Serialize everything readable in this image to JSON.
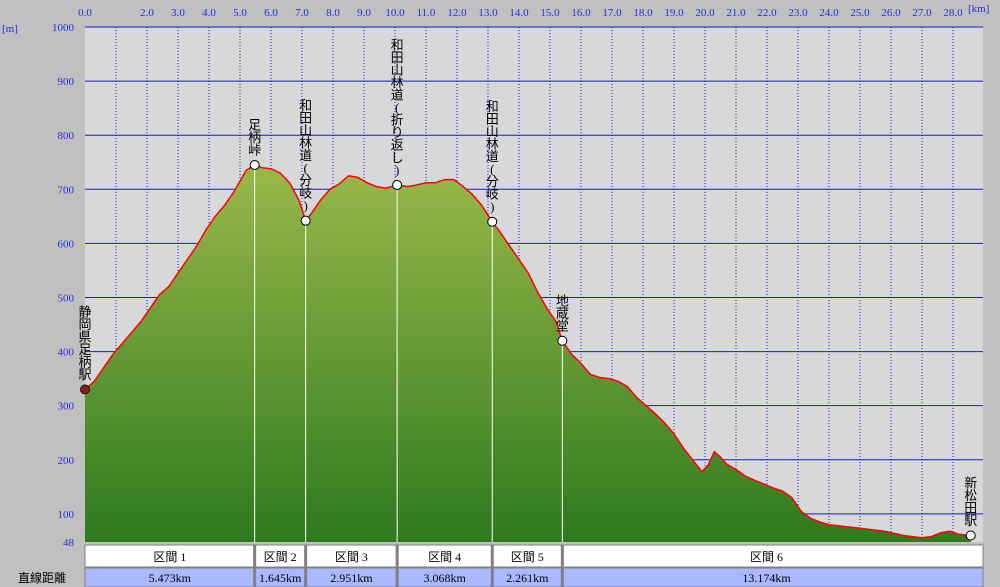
{
  "chart_data": {
    "type": "area",
    "x_unit": "[km]",
    "y_unit": "[m]",
    "xlim": [
      0,
      28.3
    ],
    "ylim": [
      48,
      1000
    ],
    "x_ticks": [
      "0.0",
      "2.0",
      "3.0",
      "4.0",
      "5.0",
      "6.0",
      "7.0",
      "8.0",
      "9.0",
      "10.0",
      "11.0",
      "12.0",
      "13.0",
      "14.0",
      "15.0",
      "16.0",
      "17.0",
      "18.0",
      "19.0",
      "20.0",
      "21.0",
      "22.0",
      "23.0",
      "24.0",
      "25.0",
      "26.0",
      "27.0",
      "28.0"
    ],
    "y_ticks": [
      {
        "value": 1000,
        "label": "1000"
      },
      {
        "value": 900,
        "label": "900"
      },
      {
        "value": 800,
        "label": "800"
      },
      {
        "value": 700,
        "label": "700"
      },
      {
        "value": 600,
        "label": "600"
      },
      {
        "value": 500,
        "label": "500"
      },
      {
        "value": 400,
        "label": "400"
      },
      {
        "value": 300,
        "label": "300"
      },
      {
        "value": 200,
        "label": "200"
      },
      {
        "value": 100,
        "label": "100"
      },
      {
        "value": 48,
        "label": "48"
      }
    ],
    "grid": true,
    "profile": [
      [
        0.0,
        330
      ],
      [
        0.3,
        345
      ],
      [
        0.6,
        370
      ],
      [
        0.9,
        395
      ],
      [
        1.2,
        415
      ],
      [
        1.5,
        435
      ],
      [
        1.8,
        455
      ],
      [
        2.1,
        480
      ],
      [
        2.4,
        505
      ],
      [
        2.7,
        520
      ],
      [
        3.0,
        545
      ],
      [
        3.3,
        570
      ],
      [
        3.6,
        595
      ],
      [
        3.9,
        625
      ],
      [
        4.2,
        650
      ],
      [
        4.5,
        670
      ],
      [
        4.8,
        695
      ],
      [
        5.0,
        715
      ],
      [
        5.2,
        735
      ],
      [
        5.473,
        745
      ],
      [
        5.7,
        740
      ],
      [
        6.0,
        738
      ],
      [
        6.3,
        730
      ],
      [
        6.6,
        712
      ],
      [
        6.9,
        680
      ],
      [
        7.118,
        642
      ],
      [
        7.3,
        655
      ],
      [
        7.6,
        680
      ],
      [
        7.9,
        700
      ],
      [
        8.2,
        710
      ],
      [
        8.5,
        725
      ],
      [
        8.8,
        722
      ],
      [
        9.1,
        712
      ],
      [
        9.4,
        705
      ],
      [
        9.7,
        702
      ],
      [
        10.069,
        708
      ],
      [
        10.4,
        705
      ],
      [
        10.7,
        708
      ],
      [
        11.0,
        712
      ],
      [
        11.3,
        712
      ],
      [
        11.6,
        718
      ],
      [
        11.9,
        718
      ],
      [
        12.2,
        705
      ],
      [
        12.5,
        690
      ],
      [
        12.8,
        670
      ],
      [
        13.137,
        640
      ],
      [
        13.4,
        620
      ],
      [
        13.7,
        595
      ],
      [
        14.0,
        570
      ],
      [
        14.3,
        545
      ],
      [
        14.6,
        510
      ],
      [
        14.9,
        480
      ],
      [
        15.2,
        455
      ],
      [
        15.398,
        420
      ],
      [
        15.7,
        395
      ],
      [
        16.0,
        378
      ],
      [
        16.3,
        358
      ],
      [
        16.6,
        352
      ],
      [
        16.9,
        350
      ],
      [
        17.2,
        345
      ],
      [
        17.5,
        335
      ],
      [
        17.8,
        315
      ],
      [
        18.1,
        300
      ],
      [
        18.4,
        285
      ],
      [
        18.7,
        268
      ],
      [
        19.0,
        248
      ],
      [
        19.3,
        222
      ],
      [
        19.6,
        200
      ],
      [
        19.9,
        178
      ],
      [
        20.1,
        190
      ],
      [
        20.3,
        215
      ],
      [
        20.5,
        205
      ],
      [
        20.7,
        192
      ],
      [
        21.0,
        182
      ],
      [
        21.3,
        170
      ],
      [
        21.6,
        162
      ],
      [
        21.9,
        155
      ],
      [
        22.2,
        148
      ],
      [
        22.5,
        142
      ],
      [
        22.8,
        130
      ],
      [
        23.1,
        105
      ],
      [
        23.4,
        92
      ],
      [
        23.7,
        85
      ],
      [
        24.0,
        80
      ],
      [
        24.3,
        78
      ],
      [
        24.6,
        76
      ],
      [
        24.9,
        74
      ],
      [
        25.2,
        72
      ],
      [
        25.5,
        70
      ],
      [
        25.8,
        68
      ],
      [
        26.1,
        64
      ],
      [
        26.4,
        60
      ],
      [
        26.7,
        58
      ],
      [
        27.0,
        56
      ],
      [
        27.3,
        58
      ],
      [
        27.6,
        65
      ],
      [
        27.9,
        68
      ],
      [
        28.2,
        62
      ],
      [
        28.572,
        60
      ]
    ],
    "waypoints": [
      {
        "name": "静岡県足柄駅",
        "km": 0.0,
        "elev": 330,
        "marker": "start"
      },
      {
        "name": "足柄峠",
        "km": 5.473,
        "elev": 745,
        "marker": "circle"
      },
      {
        "name": "和田山林道(分岐)",
        "km": 7.118,
        "elev": 642,
        "marker": "circle"
      },
      {
        "name": "和田山林道(折り返し)",
        "km": 10.069,
        "elev": 708,
        "marker": "circle"
      },
      {
        "name": "和田山林道(分岐)",
        "km": 13.137,
        "elev": 640,
        "marker": "circle"
      },
      {
        "name": "地蔵堂",
        "km": 15.398,
        "elev": 420,
        "marker": "circle"
      },
      {
        "name": "新松田駅",
        "km": 28.572,
        "elev": 60,
        "marker": "circle"
      }
    ],
    "sections": [
      {
        "label": "区間 1",
        "distance": "5.473km",
        "start_km": 0.0,
        "end_km": 5.473
      },
      {
        "label": "区間 2",
        "distance": "1.645km",
        "start_km": 5.473,
        "end_km": 7.118
      },
      {
        "label": "区間 3",
        "distance": "2.951km",
        "start_km": 7.118,
        "end_km": 10.069
      },
      {
        "label": "区間 4",
        "distance": "3.068km",
        "start_km": 10.069,
        "end_km": 13.137
      },
      {
        "label": "区間 5",
        "distance": "2.261km",
        "start_km": 13.137,
        "end_km": 15.398
      },
      {
        "label": "区間 6",
        "distance": "13.174km",
        "start_km": 15.398,
        "end_km": 28.572
      }
    ],
    "table_row_label": "直線距離",
    "colors": {
      "background": "#c0c0c0",
      "plot": "#d8d8d8",
      "grid_h": "#1a1ac8",
      "grid_v": "#1a1ac8",
      "profile_line": "#ff0000",
      "fill_top": "#9ab84a",
      "fill_bottom": "#2e7a1e",
      "tick_text": "#2b2bd8",
      "section_row": "#ffffff",
      "distance_row": "#a9b8ff"
    }
  }
}
